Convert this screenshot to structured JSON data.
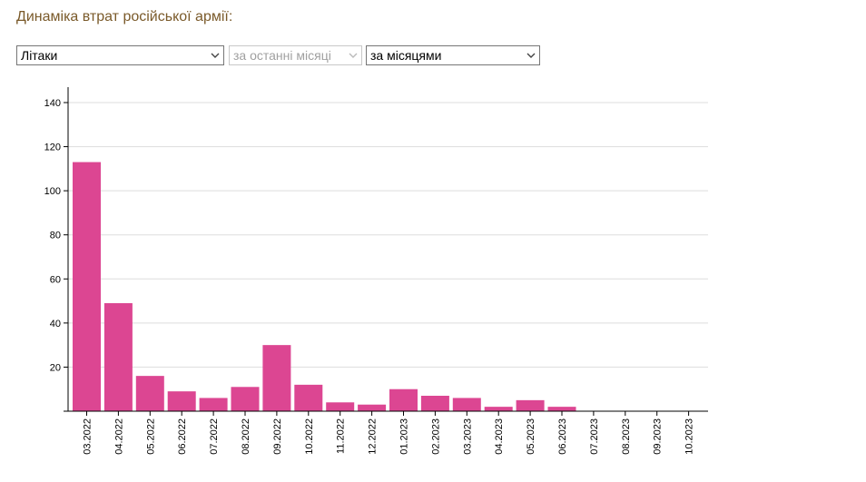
{
  "header": {
    "title": "Динаміка втрат російської армії:"
  },
  "filters": {
    "type": {
      "selected": "Літаки"
    },
    "period": {
      "selected": "за останні місяці",
      "disabled": true
    },
    "grouping": {
      "selected": "за місяцями"
    }
  },
  "colors": {
    "bar": "#dc4692",
    "grid": "#dddddd",
    "axis": "#000000",
    "title": "#7a5a2a"
  },
  "chart_data": {
    "type": "bar",
    "title": "",
    "xlabel": "",
    "ylabel": "",
    "categories": [
      "03.2022",
      "04.2022",
      "05.2022",
      "06.2022",
      "07.2022",
      "08.2022",
      "09.2022",
      "10.2022",
      "11.2022",
      "12.2022",
      "01.2023",
      "02.2023",
      "03.2023",
      "04.2023",
      "05.2023",
      "06.2023",
      "07.2023",
      "08.2023",
      "09.2023",
      "10.2023"
    ],
    "values": [
      113,
      49,
      16,
      9,
      6,
      11,
      30,
      12,
      4,
      3,
      10,
      7,
      6,
      2,
      5,
      2,
      0,
      0,
      0,
      0
    ],
    "ylim": [
      0,
      147
    ],
    "yticks": [
      20,
      40,
      60,
      80,
      100,
      120,
      140
    ],
    "grid": true,
    "legend": "none"
  }
}
